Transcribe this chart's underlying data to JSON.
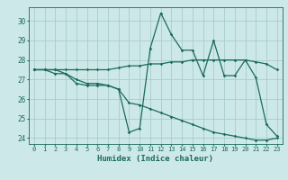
{
  "xlabel": "Humidex (Indice chaleur)",
  "bg_color": "#cde8e8",
  "grid_color": "#a8cccc",
  "line_color": "#1a6b5a",
  "xlim": [
    -0.5,
    23.5
  ],
  "ylim": [
    23.7,
    30.7
  ],
  "yticks": [
    24,
    25,
    26,
    27,
    28,
    29,
    30
  ],
  "xticks": [
    0,
    1,
    2,
    3,
    4,
    5,
    6,
    7,
    8,
    9,
    10,
    11,
    12,
    13,
    14,
    15,
    16,
    17,
    18,
    19,
    20,
    21,
    22,
    23
  ],
  "series_flat": {
    "x": [
      0,
      1,
      2,
      3,
      4,
      5,
      6,
      7,
      8,
      9,
      10,
      11,
      12,
      13,
      14,
      15,
      16,
      17,
      18,
      19,
      20,
      21,
      22,
      23
    ],
    "y": [
      27.5,
      27.5,
      27.5,
      27.5,
      27.5,
      27.5,
      27.5,
      27.5,
      27.6,
      27.7,
      27.7,
      27.8,
      27.8,
      27.9,
      27.9,
      28.0,
      28.0,
      28.0,
      28.0,
      28.0,
      28.0,
      27.9,
      27.8,
      27.5
    ]
  },
  "series_wavy": {
    "x": [
      0,
      1,
      2,
      3,
      4,
      5,
      6,
      7,
      8,
      9,
      10,
      11,
      12,
      13,
      14,
      15,
      16,
      17,
      18,
      19,
      20,
      21,
      22,
      23
    ],
    "y": [
      27.5,
      27.5,
      27.3,
      27.3,
      26.8,
      26.7,
      26.7,
      26.7,
      26.5,
      24.3,
      24.5,
      28.6,
      30.4,
      29.3,
      28.5,
      28.5,
      27.2,
      29.0,
      27.2,
      27.2,
      28.0,
      27.1,
      24.7,
      24.1
    ]
  },
  "series_decline": {
    "x": [
      0,
      1,
      2,
      3,
      4,
      5,
      6,
      7,
      8,
      9,
      10,
      11,
      12,
      13,
      14,
      15,
      16,
      17,
      18,
      19,
      20,
      21,
      22,
      23
    ],
    "y": [
      27.5,
      27.5,
      27.5,
      27.3,
      27.0,
      26.8,
      26.8,
      26.7,
      26.5,
      25.8,
      25.7,
      25.5,
      25.3,
      25.1,
      24.9,
      24.7,
      24.5,
      24.3,
      24.2,
      24.1,
      24.0,
      23.9,
      23.9,
      24.0
    ]
  }
}
